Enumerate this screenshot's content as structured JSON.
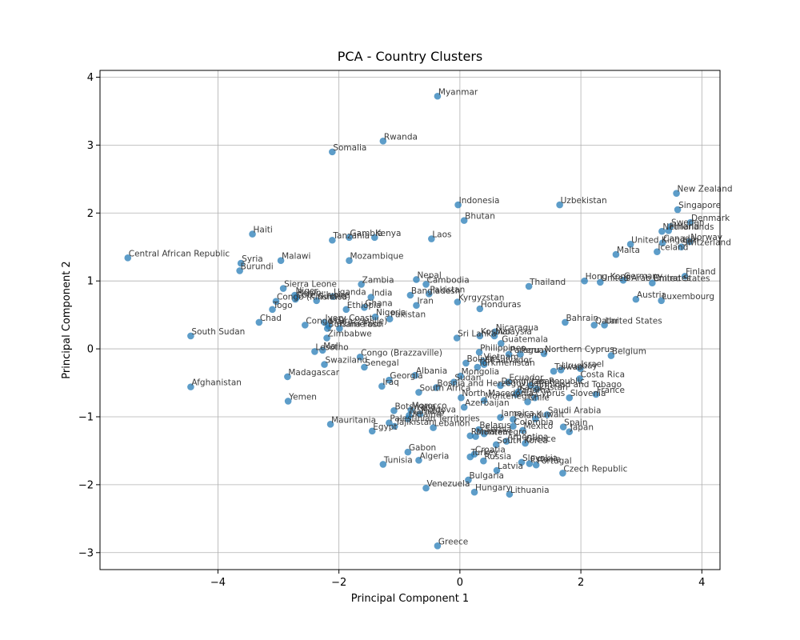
{
  "chart_data": {
    "type": "scatter",
    "title": "PCA - Country Clusters",
    "xlabel": "Principal Component 1",
    "ylabel": "Principal Component 2",
    "xlim": [
      -5.95,
      4.3
    ],
    "ylim": [
      -3.25,
      4.1
    ],
    "xticks": [
      -4,
      -2,
      0,
      2,
      4
    ],
    "yticks": [
      -3,
      -2,
      -1,
      0,
      1,
      2,
      3,
      4
    ],
    "grid": true,
    "marker_color": "#1f77b4",
    "points": [
      {
        "label": "Myanmar",
        "x": -0.37,
        "y": 3.72
      },
      {
        "label": "Rwanda",
        "x": -1.27,
        "y": 3.06
      },
      {
        "label": "Somalia",
        "x": -2.11,
        "y": 2.9
      },
      {
        "label": "New Zealand",
        "x": 3.58,
        "y": 2.29
      },
      {
        "label": "Indonesia",
        "x": -0.03,
        "y": 2.12
      },
      {
        "label": "Uzbekistan",
        "x": 1.65,
        "y": 2.12
      },
      {
        "label": "Singapore",
        "x": 3.6,
        "y": 2.05
      },
      {
        "label": "Bhutan",
        "x": 0.07,
        "y": 1.89
      },
      {
        "label": "Denmark",
        "x": 3.81,
        "y": 1.86
      },
      {
        "label": "Sweden",
        "x": 3.48,
        "y": 1.8
      },
      {
        "label": "Netherlands",
        "x": 3.34,
        "y": 1.73
      },
      {
        "label": "Finland",
        "x": 3.45,
        "y": 1.74
      },
      {
        "label": "Haiti",
        "x": -3.43,
        "y": 1.69
      },
      {
        "label": "Gambia",
        "x": -1.83,
        "y": 1.64
      },
      {
        "label": "Kenya",
        "x": -1.41,
        "y": 1.64
      },
      {
        "label": "Laos",
        "x": -0.47,
        "y": 1.62
      },
      {
        "label": "Tanzania",
        "x": -2.11,
        "y": 1.6
      },
      {
        "label": "United Kingdom",
        "x": 2.82,
        "y": 1.54
      },
      {
        "label": "Canada",
        "x": 3.35,
        "y": 1.56
      },
      {
        "label": "Norway",
        "x": 3.8,
        "y": 1.58
      },
      {
        "label": "Switzerland",
        "x": 3.66,
        "y": 1.5
      },
      {
        "label": "Iceland",
        "x": 3.26,
        "y": 1.43
      },
      {
        "label": "Malta",
        "x": 2.58,
        "y": 1.39
      },
      {
        "label": "Central African Republic",
        "x": -5.49,
        "y": 1.34
      },
      {
        "label": "Malawi",
        "x": -2.96,
        "y": 1.3
      },
      {
        "label": "Mozambique",
        "x": -1.83,
        "y": 1.3
      },
      {
        "label": "Syria",
        "x": -3.62,
        "y": 1.26
      },
      {
        "label": "Burundi",
        "x": -3.64,
        "y": 1.15
      },
      {
        "label": "Finland",
        "x": 3.72,
        "y": 1.07
      },
      {
        "label": "Nepal",
        "x": -0.72,
        "y": 1.02
      },
      {
        "label": "Hong Kong",
        "x": 2.06,
        "y": 1.0
      },
      {
        "label": "Germany",
        "x": 2.7,
        "y": 1.01
      },
      {
        "label": "United Arab Emirates",
        "x": 2.32,
        "y": 0.98
      },
      {
        "label": "United States",
        "x": 3.18,
        "y": 0.97
      },
      {
        "label": "Zambia",
        "x": -1.63,
        "y": 0.95
      },
      {
        "label": "Cambodia",
        "x": -0.56,
        "y": 0.95
      },
      {
        "label": "Thailand",
        "x": 1.14,
        "y": 0.92
      },
      {
        "label": "Sierra Leone",
        "x": -2.92,
        "y": 0.89
      },
      {
        "label": "Pakistan",
        "x": -0.51,
        "y": 0.81
      },
      {
        "label": "Bangladesh",
        "x": -0.82,
        "y": 0.79
      },
      {
        "label": "Niger",
        "x": -2.73,
        "y": 0.79
      },
      {
        "label": "Benin",
        "x": -2.7,
        "y": 0.76
      },
      {
        "label": "Uganda",
        "x": -2.1,
        "y": 0.77
      },
      {
        "label": "India",
        "x": -1.47,
        "y": 0.76
      },
      {
        "label": "Guinea",
        "x": -2.37,
        "y": 0.71
      },
      {
        "label": "Kyrgyzstan",
        "x": -0.04,
        "y": 0.69
      },
      {
        "label": "Luxembourg",
        "x": 3.33,
        "y": 0.71
      },
      {
        "label": "Congo (Kinshasa)",
        "x": -3.04,
        "y": 0.7
      },
      {
        "label": "Cote d'Ivoire",
        "x": -2.72,
        "y": 0.73
      },
      {
        "label": "Austria",
        "x": 2.91,
        "y": 0.73
      },
      {
        "label": "Iran",
        "x": -0.72,
        "y": 0.64
      },
      {
        "label": "Ghana",
        "x": -1.58,
        "y": 0.61
      },
      {
        "label": "Ethiopia",
        "x": -1.88,
        "y": 0.58
      },
      {
        "label": "Honduras",
        "x": 0.33,
        "y": 0.59
      },
      {
        "label": "Togo",
        "x": -3.1,
        "y": 0.58
      },
      {
        "label": "Nigeria",
        "x": -1.4,
        "y": 0.47
      },
      {
        "label": "Pakistan",
        "x": -1.16,
        "y": 0.44
      },
      {
        "label": "Ivory Coast",
        "x": -2.24,
        "y": 0.39
      },
      {
        "label": "Chad",
        "x": -3.32,
        "y": 0.39
      },
      {
        "label": "Congo (Brazzaville)",
        "x": -2.56,
        "y": 0.35
      },
      {
        "label": "Bahrain",
        "x": 1.74,
        "y": 0.39
      },
      {
        "label": "Qatar",
        "x": 2.22,
        "y": 0.35
      },
      {
        "label": "United States",
        "x": 2.39,
        "y": 0.35
      },
      {
        "label": "Burkina Faso",
        "x": -2.19,
        "y": 0.3
      },
      {
        "label": "Cameroon",
        "x": -1.99,
        "y": 0.3
      },
      {
        "label": "Mali",
        "x": -2.17,
        "y": 0.34
      },
      {
        "label": "Nicaragua",
        "x": 0.58,
        "y": 0.25
      },
      {
        "label": "Kosovo",
        "x": 0.33,
        "y": 0.19
      },
      {
        "label": "Malaysia",
        "x": 0.57,
        "y": 0.19
      },
      {
        "label": "Sri Lanka",
        "x": -0.05,
        "y": 0.16
      },
      {
        "label": "South Sudan",
        "x": -4.45,
        "y": 0.19
      },
      {
        "label": "Zimbabwe",
        "x": -2.2,
        "y": 0.16
      },
      {
        "label": "Guatemala",
        "x": 0.68,
        "y": 0.08
      },
      {
        "label": "Lesotho",
        "x": -2.4,
        "y": -0.04
      },
      {
        "label": "Mali",
        "x": -2.27,
        "y": -0.02
      },
      {
        "label": "Philippines",
        "x": 0.32,
        "y": -0.05
      },
      {
        "label": "Paraguay",
        "x": 0.81,
        "y": -0.08
      },
      {
        "label": "Northern Cyprus",
        "x": 1.39,
        "y": -0.07
      },
      {
        "label": "Peru",
        "x": 1.0,
        "y": -0.08
      },
      {
        "label": "Belgium",
        "x": 2.5,
        "y": -0.1
      },
      {
        "label": "Congo (Brazzaville)",
        "x": -1.65,
        "y": -0.12
      },
      {
        "label": "Bolivia",
        "x": 0.1,
        "y": -0.21
      },
      {
        "label": "Vietnam",
        "x": 0.38,
        "y": -0.18
      },
      {
        "label": "El Salvador",
        "x": 0.4,
        "y": -0.23
      },
      {
        "label": "Turkmenistan",
        "x": 0.29,
        "y": -0.27
      },
      {
        "label": "Swaziland",
        "x": -2.24,
        "y": -0.23
      },
      {
        "label": "Senegal",
        "x": -1.58,
        "y": -0.27
      },
      {
        "label": "Israel",
        "x": 1.99,
        "y": -0.29
      },
      {
        "label": "Uruguay",
        "x": 1.67,
        "y": -0.31
      },
      {
        "label": "Taiwan",
        "x": 1.55,
        "y": -0.33
      },
      {
        "label": "Madagascar",
        "x": -2.85,
        "y": -0.41
      },
      {
        "label": "Albania",
        "x": -0.74,
        "y": -0.39
      },
      {
        "label": "Mongolia",
        "x": 0.01,
        "y": -0.4
      },
      {
        "label": "Costa Rica",
        "x": 1.98,
        "y": -0.44
      },
      {
        "label": "Georgia",
        "x": -1.17,
        "y": -0.46
      },
      {
        "label": "Sudan",
        "x": -0.1,
        "y": -0.49
      },
      {
        "label": "Ecuador",
        "x": 0.8,
        "y": -0.49
      },
      {
        "label": "Dominican Republic",
        "x": 0.67,
        "y": -0.54
      },
      {
        "label": "Japan",
        "x": 1.17,
        "y": -0.54
      },
      {
        "label": "Iraq",
        "x": -1.29,
        "y": -0.55
      },
      {
        "label": "Afghanistan",
        "x": -4.45,
        "y": -0.56
      },
      {
        "label": "Bosnia and Herzegovina",
        "x": -0.39,
        "y": -0.57
      },
      {
        "label": "Trinidad and Tobago",
        "x": 1.27,
        "y": -0.59
      },
      {
        "label": "South Africa",
        "x": -0.68,
        "y": -0.64
      },
      {
        "label": "Kazakhstan",
        "x": 0.97,
        "y": -0.63
      },
      {
        "label": "Panama",
        "x": 0.93,
        "y": -0.67
      },
      {
        "label": "France",
        "x": 2.25,
        "y": -0.67
      },
      {
        "label": "North Macedonia",
        "x": 0.02,
        "y": -0.72
      },
      {
        "label": "Slovenia",
        "x": 1.81,
        "y": -0.72
      },
      {
        "label": "Cyprus",
        "x": 1.24,
        "y": -0.72
      },
      {
        "label": "Montenegro",
        "x": 0.4,
        "y": -0.76
      },
      {
        "label": "Chile",
        "x": 1.12,
        "y": -0.78
      },
      {
        "label": "Yemen",
        "x": -2.84,
        "y": -0.77
      },
      {
        "label": "Azerbaijan",
        "x": 0.07,
        "y": -0.86
      },
      {
        "label": "Botswana",
        "x": -1.09,
        "y": -0.91
      },
      {
        "label": "Morocco",
        "x": -0.81,
        "y": -0.9
      },
      {
        "label": "Moldova",
        "x": -0.66,
        "y": -0.96
      },
      {
        "label": "Namibia",
        "x": -0.84,
        "y": -0.98
      },
      {
        "label": "Saudi Arabia",
        "x": 1.44,
        "y": -0.97
      },
      {
        "label": "Jamaica",
        "x": 0.67,
        "y": -1.01
      },
      {
        "label": "Poland",
        "x": 0.88,
        "y": -1.04
      },
      {
        "label": "Kuwait",
        "x": 1.25,
        "y": -1.03
      },
      {
        "label": "Ukraine",
        "x": -0.86,
        "y": -1.03
      },
      {
        "label": "Palestinian Territories",
        "x": -1.17,
        "y": -1.09
      },
      {
        "label": "Mauritania",
        "x": -2.14,
        "y": -1.11
      },
      {
        "label": "Tajikistan",
        "x": -1.08,
        "y": -1.14
      },
      {
        "label": "Lebanon",
        "x": -0.44,
        "y": -1.16
      },
      {
        "label": "Colombia",
        "x": 0.88,
        "y": -1.14
      },
      {
        "label": "Spain",
        "x": 1.71,
        "y": -1.15
      },
      {
        "label": "Mexico",
        "x": 1.04,
        "y": -1.2
      },
      {
        "label": "Japan",
        "x": 1.81,
        "y": -1.22
      },
      {
        "label": "Egypt",
        "x": -1.45,
        "y": -1.21
      },
      {
        "label": "Belarus",
        "x": 0.31,
        "y": -1.19
      },
      {
        "label": "Serbia",
        "x": 0.4,
        "y": -1.25
      },
      {
        "label": "Romania",
        "x": 0.17,
        "y": -1.28
      },
      {
        "label": "Montenegro",
        "x": 0.26,
        "y": -1.29
      },
      {
        "label": "Argentina",
        "x": 0.77,
        "y": -1.36
      },
      {
        "label": "South Korea",
        "x": 0.6,
        "y": -1.41
      },
      {
        "label": "Greece",
        "x": 1.08,
        "y": -1.39
      },
      {
        "label": "Gabon",
        "x": -0.86,
        "y": -1.52
      },
      {
        "label": "Croatia",
        "x": 0.24,
        "y": -1.55
      },
      {
        "label": "Turkey",
        "x": 0.17,
        "y": -1.59
      },
      {
        "label": "Algeria",
        "x": -0.68,
        "y": -1.64
      },
      {
        "label": "Russia",
        "x": 0.39,
        "y": -1.65
      },
      {
        "label": "Slovakia",
        "x": 1.02,
        "y": -1.67
      },
      {
        "label": "Portugal",
        "x": 1.26,
        "y": -1.71
      },
      {
        "label": "Estonia",
        "x": 1.15,
        "y": -1.69
      },
      {
        "label": "Tunisia",
        "x": -1.27,
        "y": -1.7
      },
      {
        "label": "Latvia",
        "x": 0.61,
        "y": -1.79
      },
      {
        "label": "Czech Republic",
        "x": 1.7,
        "y": -1.83
      },
      {
        "label": "Bulgaria",
        "x": 0.14,
        "y": -1.93
      },
      {
        "label": "Venezuela",
        "x": -0.56,
        "y": -2.05
      },
      {
        "label": "Hungary",
        "x": 0.24,
        "y": -2.11
      },
      {
        "label": "Lithuania",
        "x": 0.82,
        "y": -2.14
      },
      {
        "label": "Greece",
        "x": -0.37,
        "y": -2.9
      }
    ]
  }
}
